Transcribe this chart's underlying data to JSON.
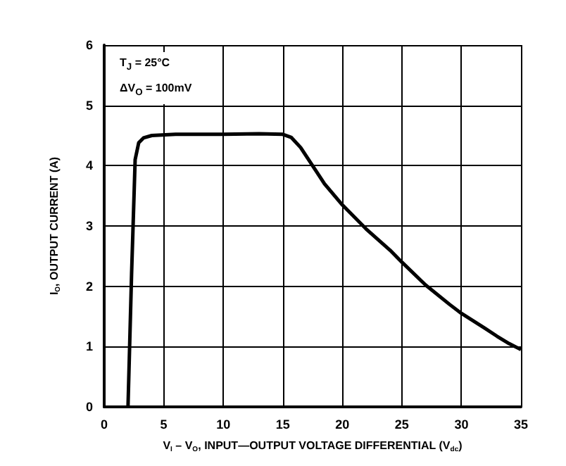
{
  "chart_data": {
    "type": "line",
    "xlabel": "V$_{I}$ – V$_{O}$, INPUT—OUTPUT VOLTAGE DIFFERENTIAL (V$_{dc}$)",
    "ylabel": "I$_{O}$, OUTPUT CURRENT (A)",
    "annotations": [
      "T$_{J}$ = 25°C",
      "ΔV$_{O}$ = 100mV"
    ],
    "x": [
      2,
      2.3,
      2.6,
      2.9,
      3.3,
      4,
      6,
      10,
      13,
      15,
      15.7,
      16.5,
      17.5,
      18.5,
      20,
      22,
      24,
      25,
      27,
      29,
      30,
      32,
      33,
      34,
      35
    ],
    "series": [
      {
        "color": "#000000",
        "values": [
          0,
          2.2,
          4.1,
          4.38,
          4.46,
          4.5,
          4.52,
          4.52,
          4.53,
          4.52,
          4.47,
          4.3,
          4.0,
          3.7,
          3.35,
          2.95,
          2.6,
          2.4,
          2.02,
          1.7,
          1.55,
          1.3,
          1.17,
          1.05,
          0.95
        ]
      }
    ],
    "xlim": [
      0,
      35
    ],
    "xticks": [
      0,
      5,
      10,
      15,
      20,
      25,
      30,
      35
    ],
    "ylim": [
      0,
      6
    ],
    "yticks": [
      0,
      1,
      2,
      3,
      4,
      5,
      6
    ],
    "grid": true,
    "marker": "none",
    "line_style": "solid"
  }
}
